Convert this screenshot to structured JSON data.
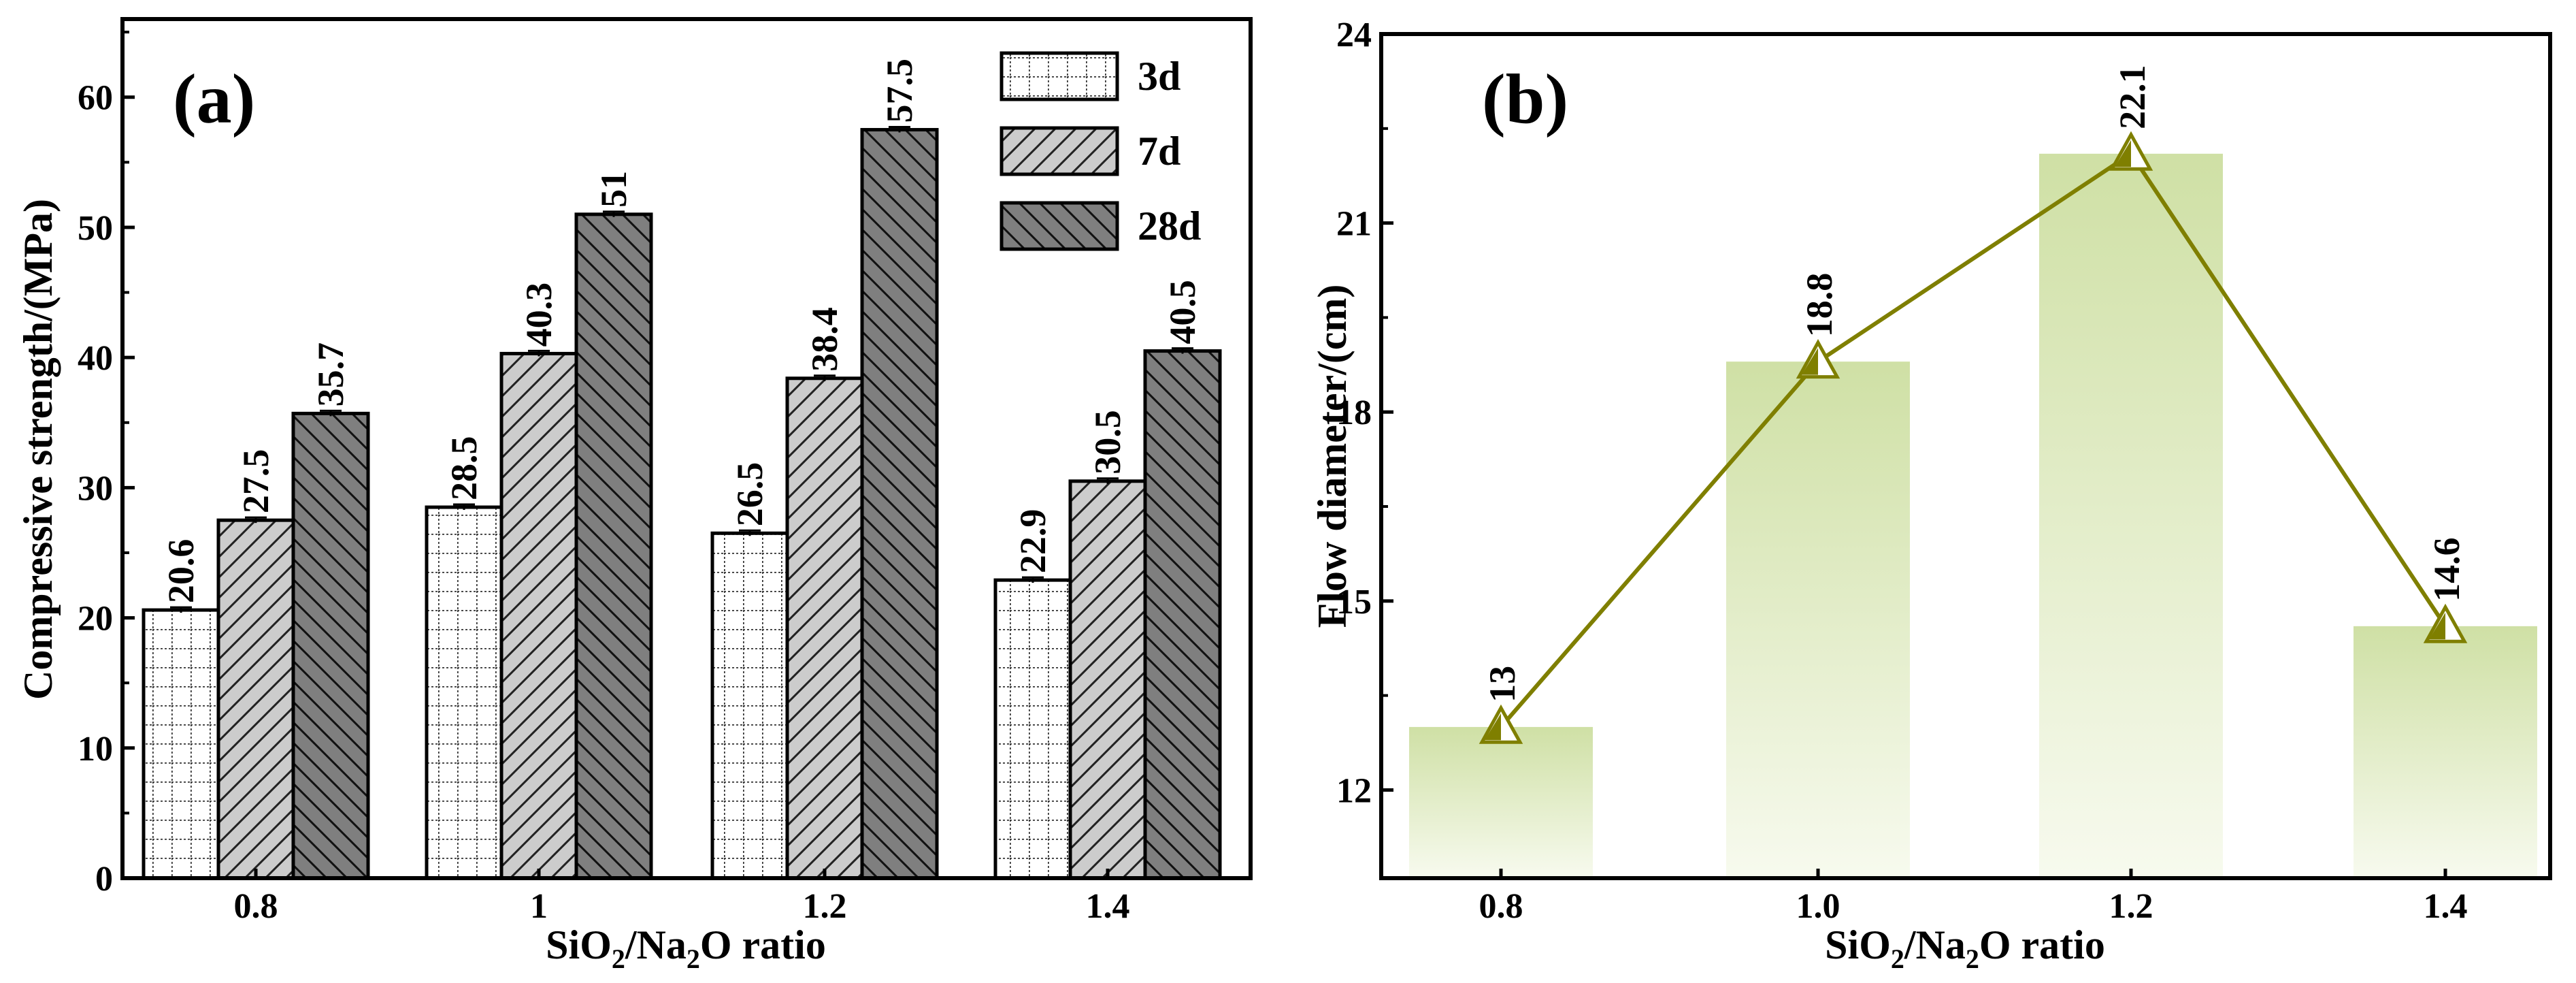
{
  "chart_data": [
    {
      "type": "bar",
      "panel_label": "(a)",
      "categories": [
        "0.8",
        "1",
        "1.2",
        "1.4"
      ],
      "series": [
        {
          "name": "3d",
          "values": [
            20.6,
            28.5,
            26.5,
            22.9
          ]
        },
        {
          "name": "7d",
          "values": [
            27.5,
            40.3,
            38.4,
            30.5
          ]
        },
        {
          "name": "28d",
          "values": [
            35.7,
            51,
            57.5,
            40.5
          ]
        }
      ],
      "value_labels": [
        [
          "20.6",
          "28.5",
          "26.5",
          "22.9"
        ],
        [
          "27.5",
          "40.3",
          "38.4",
          "30.5"
        ],
        [
          "35.7",
          "51",
          "57.5",
          "40.5"
        ]
      ],
      "xlabel_parts": [
        "SiO",
        "2",
        "/Na",
        "2",
        "O ratio"
      ],
      "ylabel": "Compressive strength/(MPa)",
      "ylim": [
        0,
        66
      ],
      "yticks": [
        0,
        10,
        20,
        30,
        40,
        50,
        60
      ],
      "legend": [
        "3d",
        "7d",
        "28d"
      ],
      "legend_position": "top-right",
      "error_bars": true
    },
    {
      "type": "line",
      "panel_label": "(b)",
      "categories": [
        "0.8",
        "1.0",
        "1.2",
        "1.4"
      ],
      "values": [
        13,
        18.8,
        22.1,
        14.6
      ],
      "value_labels": [
        "13",
        "18.8",
        "22.1",
        "14.6"
      ],
      "background_bars": true,
      "xlabel_parts": [
        "SiO",
        "2",
        "/Na",
        "2",
        "O ratio"
      ],
      "ylabel": "Flow diameter/(cm)",
      "ylim": [
        10.6,
        24
      ],
      "yticks": [
        12,
        15,
        18,
        21,
        24
      ],
      "colors": {
        "line": "#7f7f00",
        "marker_fill": "#7f7f00",
        "bar": "#cfe0a5"
      }
    }
  ]
}
